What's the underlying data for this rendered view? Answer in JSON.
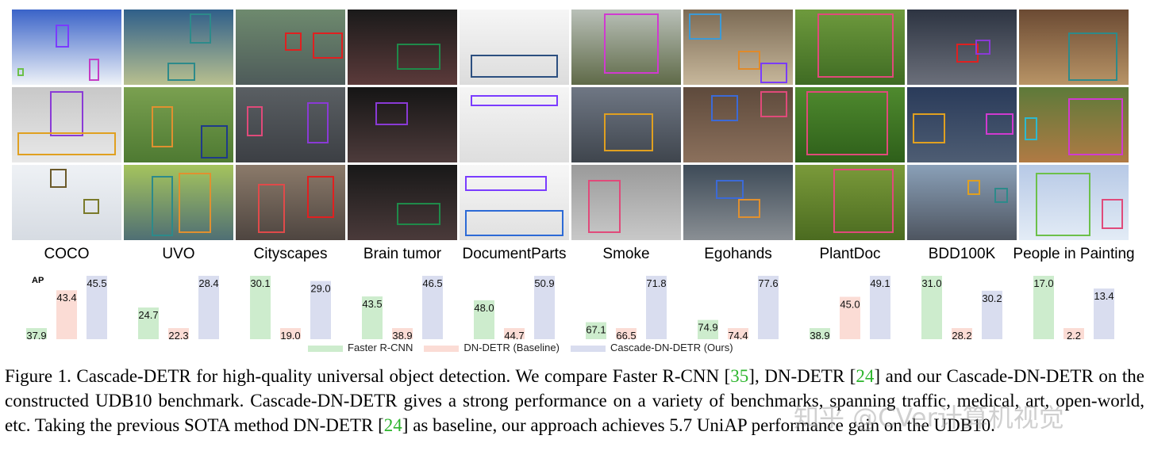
{
  "datasets": [
    "COCO",
    "UVO",
    "Cityscapes",
    "Brain tumor",
    "DocumentParts",
    "Smoke",
    "Egohands",
    "PlantDoc",
    "BDD100K",
    "People in Painting"
  ],
  "chart_data": {
    "type": "bar",
    "ylabel": "AP",
    "categories": [
      "COCO",
      "UVO",
      "Cityscapes",
      "Brain tumor",
      "DocumentParts",
      "Smoke",
      "Egohands",
      "PlantDoc",
      "BDD100K",
      "People in Painting"
    ],
    "series": [
      {
        "name": "Faster R-CNN",
        "color": "#cdeccd",
        "values": [
          37.9,
          24.7,
          30.1,
          43.5,
          48.0,
          67.1,
          74.9,
          38.9,
          31.0,
          17.0
        ]
      },
      {
        "name": "DN-DETR (Baseline)",
        "color": "#fbdcd5",
        "values": [
          43.4,
          22.3,
          19.0,
          38.9,
          44.7,
          66.5,
          74.4,
          45.0,
          28.2,
          2.2
        ]
      },
      {
        "name": "Cascade-DN-DETR (Ours)",
        "color": "#d9ddef",
        "values": [
          45.5,
          28.4,
          29.0,
          46.5,
          50.9,
          71.8,
          77.6,
          49.1,
          30.2,
          13.4
        ]
      }
    ],
    "legend_position": "bottom",
    "grid": false
  },
  "caption": {
    "parts": [
      {
        "text": "Figure 1. Cascade-DETR for high-quality universal object detection. We compare Faster R-CNN [",
        "cite": false
      },
      {
        "text": "35",
        "cite": true
      },
      {
        "text": "], DN-DETR [",
        "cite": false
      },
      {
        "text": "24",
        "cite": true
      },
      {
        "text": "] and our Cascade-DN-DETR on the constructed UDB10 benchmark. Cascade-DN-DETR gives a strong performance on a variety of benchmarks, spanning traffic, medical, art, open-world, etc. Taking the previous SOTA method DN-DETR [",
        "cite": false
      },
      {
        "text": "24",
        "cite": true
      },
      {
        "text": "] as baseline, our approach achieves 5.7 UniAP performance gain on the UDB10.",
        "cite": false
      }
    ]
  },
  "watermark": "知乎 @CVer计算机视觉"
}
